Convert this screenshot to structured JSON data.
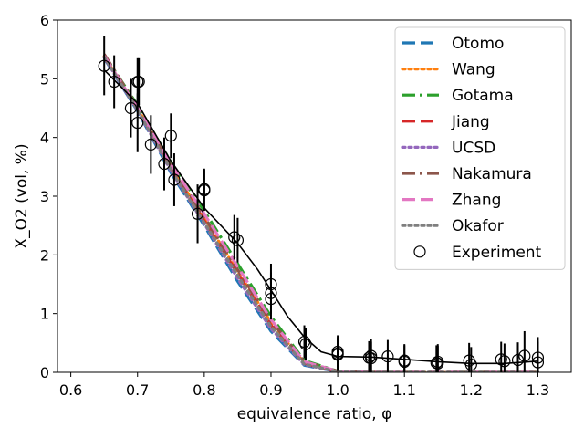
{
  "chart_data": {
    "type": "line",
    "title": "",
    "xlabel": "equivalence ratio, φ",
    "ylabel": "X_O2 (vol, %)",
    "xlim": [
      0.58,
      1.35
    ],
    "ylim": [
      0,
      6
    ],
    "x_ticks": [
      "0.6",
      "0.7",
      "0.8",
      "0.9",
      "1.0",
      "1.1",
      "1.2",
      "1.3"
    ],
    "y_ticks": [
      "0",
      "1",
      "2",
      "3",
      "4",
      "5",
      "6"
    ],
    "grid": false,
    "legend_position": "top-right",
    "series": [
      {
        "name": "Otomo",
        "color": "#1f77b4",
        "dash": "dashed",
        "x": [
          0.65,
          0.7,
          0.75,
          0.8,
          0.85,
          0.9,
          0.95,
          1.0,
          1.05,
          1.1,
          1.15,
          1.2,
          1.25,
          1.3
        ],
        "y": [
          5.35,
          4.45,
          3.4,
          2.5,
          1.55,
          0.7,
          0.12,
          0.01,
          0.0,
          0.0,
          0.0,
          0.0,
          0.0,
          0.0
        ]
      },
      {
        "name": "Wang",
        "color": "#ff7f0e",
        "dash": "dotted",
        "x": [
          0.65,
          0.7,
          0.75,
          0.8,
          0.85,
          0.9,
          0.95,
          1.0,
          1.05,
          1.1,
          1.15,
          1.2,
          1.25,
          1.3
        ],
        "y": [
          5.38,
          4.5,
          3.5,
          2.62,
          1.72,
          0.85,
          0.16,
          0.01,
          0.0,
          0.0,
          0.0,
          0.0,
          0.0,
          0.0
        ]
      },
      {
        "name": "Gotama",
        "color": "#2ca02c",
        "dash": "dashdot",
        "x": [
          0.65,
          0.7,
          0.75,
          0.8,
          0.85,
          0.9,
          0.95,
          1.0,
          1.05,
          1.1,
          1.15,
          1.2,
          1.25,
          1.3
        ],
        "y": [
          5.4,
          4.55,
          3.58,
          2.75,
          1.85,
          0.95,
          0.2,
          0.02,
          0.0,
          0.0,
          0.0,
          0.0,
          0.0,
          0.0
        ]
      },
      {
        "name": "Jiang",
        "color": "#d62728",
        "dash": "dashed",
        "x": [
          0.65,
          0.7,
          0.75,
          0.8,
          0.85,
          0.9,
          0.95,
          1.0,
          1.05,
          1.1,
          1.15,
          1.2,
          1.25,
          1.3
        ],
        "y": [
          5.37,
          4.48,
          3.47,
          2.58,
          1.68,
          0.8,
          0.15,
          0.01,
          0.0,
          0.0,
          0.0,
          0.0,
          0.0,
          0.0
        ]
      },
      {
        "name": "UCSD",
        "color": "#9467bd",
        "dash": "dotted",
        "x": [
          0.65,
          0.7,
          0.75,
          0.8,
          0.85,
          0.9,
          0.95,
          1.0,
          1.05,
          1.1,
          1.15,
          1.2,
          1.25,
          1.3
        ],
        "y": [
          5.36,
          4.46,
          3.43,
          2.53,
          1.6,
          0.74,
          0.13,
          0.01,
          0.0,
          0.0,
          0.0,
          0.0,
          0.0,
          0.0
        ]
      },
      {
        "name": "Nakamura",
        "color": "#8c564b",
        "dash": "dashdot",
        "x": [
          0.65,
          0.7,
          0.75,
          0.8,
          0.85,
          0.9,
          0.95,
          1.0,
          1.05,
          1.1,
          1.15,
          1.2,
          1.25,
          1.3
        ],
        "y": [
          5.42,
          4.52,
          3.52,
          2.65,
          1.75,
          0.88,
          0.18,
          0.02,
          0.0,
          0.0,
          0.0,
          0.0,
          0.0,
          0.0
        ]
      },
      {
        "name": "Zhang",
        "color": "#e377c2",
        "dash": "dashed",
        "x": [
          0.65,
          0.7,
          0.75,
          0.8,
          0.85,
          0.9,
          0.95,
          1.0,
          1.05,
          1.1,
          1.15,
          1.2,
          1.25,
          1.3
        ],
        "y": [
          5.39,
          4.5,
          3.55,
          2.7,
          1.8,
          0.9,
          0.18,
          0.02,
          0.0,
          0.0,
          0.0,
          0.0,
          0.0,
          0.0
        ]
      },
      {
        "name": "Okafor",
        "color": "#7f7f7f",
        "dash": "dotted",
        "x": [
          0.65,
          0.7,
          0.75,
          0.8,
          0.85,
          0.9,
          0.95,
          1.0,
          1.05,
          1.1,
          1.15,
          1.2,
          1.25,
          1.3
        ],
        "y": [
          5.37,
          4.47,
          3.45,
          2.55,
          1.65,
          0.78,
          0.14,
          0.01,
          0.0,
          0.0,
          0.0,
          0.0,
          0.0,
          0.0
        ]
      }
    ],
    "experiment": {
      "name": "Experiment",
      "x": [
        0.65,
        0.665,
        0.69,
        0.7,
        0.7,
        0.702,
        0.72,
        0.74,
        0.75,
        0.755,
        0.79,
        0.8,
        0.8,
        0.845,
        0.85,
        0.9,
        0.9,
        0.9,
        0.95,
        0.952,
        1.0,
        1.0,
        1.0,
        1.047,
        1.05,
        1.05,
        1.075,
        1.1,
        1.1,
        1.148,
        1.15,
        1.15,
        1.197,
        1.2,
        1.245,
        1.25,
        1.27,
        1.28,
        1.3,
        1.3
      ],
      "y": [
        5.22,
        4.95,
        4.5,
        4.95,
        4.25,
        4.95,
        3.88,
        3.55,
        4.03,
        3.28,
        2.7,
        3.12,
        3.1,
        2.3,
        2.25,
        1.5,
        1.35,
        1.25,
        0.52,
        0.48,
        0.35,
        0.32,
        0.3,
        0.25,
        0.28,
        0.24,
        0.27,
        0.18,
        0.2,
        0.16,
        0.18,
        0.15,
        0.2,
        0.13,
        0.22,
        0.19,
        0.21,
        0.28,
        0.25,
        0.17
      ],
      "err": [
        0.5,
        0.45,
        0.5,
        0.4,
        0.5,
        0.4,
        0.5,
        0.45,
        0.38,
        0.45,
        0.5,
        0.35,
        0.35,
        0.38,
        0.38,
        0.35,
        0.35,
        0.35,
        0.28,
        0.28,
        0.28,
        0.28,
        0.28,
        0.28,
        0.28,
        0.28,
        0.28,
        0.28,
        0.28,
        0.3,
        0.3,
        0.3,
        0.3,
        0.3,
        0.3,
        0.3,
        0.3,
        0.42,
        0.35,
        0.35
      ]
    },
    "fit_curve": {
      "color": "#000000",
      "x": [
        0.65,
        0.7,
        0.75,
        0.8,
        0.85,
        0.88,
        0.9,
        0.925,
        0.95,
        0.975,
        1.0,
        1.05,
        1.1,
        1.15,
        1.2,
        1.25,
        1.3
      ],
      "y": [
        5.15,
        4.58,
        3.6,
        2.8,
        2.2,
        1.75,
        1.4,
        0.95,
        0.6,
        0.35,
        0.27,
        0.26,
        0.22,
        0.18,
        0.15,
        0.15,
        0.19
      ]
    }
  }
}
